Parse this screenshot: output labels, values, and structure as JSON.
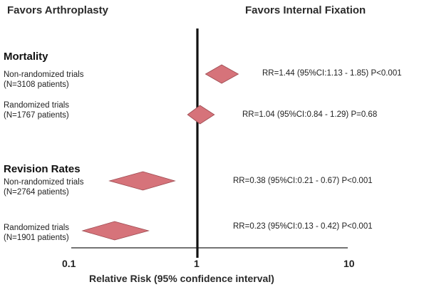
{
  "chart_data": {
    "type": "forest",
    "header_left": "Favors Arthroplasty",
    "header_right": "Favors Internal Fixation",
    "xlabel": "Relative Risk (95% confidence interval)",
    "x_scale": "log",
    "xlim": [
      0.1,
      10
    ],
    "x_ticks": [
      "0.1",
      "1",
      "10"
    ],
    "reference_line": 1,
    "marker_color": "#d6737a",
    "sections": [
      {
        "title": "Mortality",
        "rows": [
          {
            "label": "Non-randomized trials",
            "sublabel": "(N=3108 patients)",
            "rr": 1.44,
            "ci_low": 1.13,
            "ci_high": 1.85,
            "stat_text": "RR=1.44 (95%CI:1.13 - 1.85) P<0.001"
          },
          {
            "label": "Randomized trials",
            "sublabel": "(N=1767 patients)",
            "rr": 1.04,
            "ci_low": 0.84,
            "ci_high": 1.29,
            "stat_text": "RR=1.04 (95%CI:0.84 - 1.29) P=0.68"
          }
        ]
      },
      {
        "title": "Revision Rates",
        "rows": [
          {
            "label": "Non-randomized trials",
            "sublabel": "(N=2764 patients)",
            "rr": 0.38,
            "ci_low": 0.21,
            "ci_high": 0.67,
            "stat_text": "RR=0.38 (95%CI:0.21 - 0.67) P<0.001"
          },
          {
            "label": "Randomized trials",
            "sublabel": "(N=1901 patients)",
            "rr": 0.23,
            "ci_low": 0.13,
            "ci_high": 0.42,
            "stat_text": "RR=0.23 (95%CI:0.13 - 0.42) P<0.001"
          }
        ]
      }
    ]
  }
}
